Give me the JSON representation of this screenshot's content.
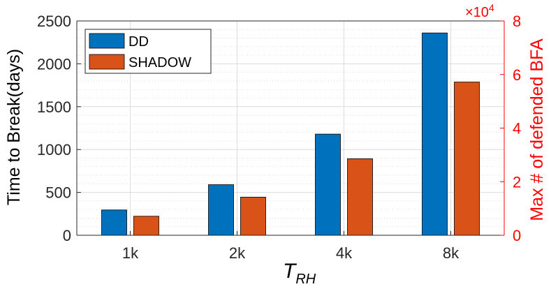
{
  "chart_data": {
    "type": "bar",
    "categories": [
      "1k",
      "2k",
      "4k",
      "8k"
    ],
    "series": [
      {
        "name": "DD",
        "values": [
          295,
          590,
          1180,
          2360
        ],
        "color": "#0072BD"
      },
      {
        "name": "SHADOW",
        "values": [
          222,
          445,
          893,
          1787
        ],
        "color": "#D95319"
      }
    ],
    "xlabel": {
      "main": "T",
      "sub": "RH"
    },
    "ylabel": "Time to Break(days)",
    "ylim": [
      0,
      2500
    ],
    "yticks": [
      "0",
      "500",
      "1000",
      "1500",
      "2000",
      "2500"
    ],
    "y2label": "Max # of defended BFA",
    "y2ticks": [
      "0",
      "2",
      "4",
      "6",
      "8"
    ],
    "y2_multiplier": {
      "base": "×10",
      "exponent": "4"
    },
    "y2_color": "#ff0000",
    "grid": true,
    "minor_grid": true,
    "legend_position": "top-left"
  }
}
